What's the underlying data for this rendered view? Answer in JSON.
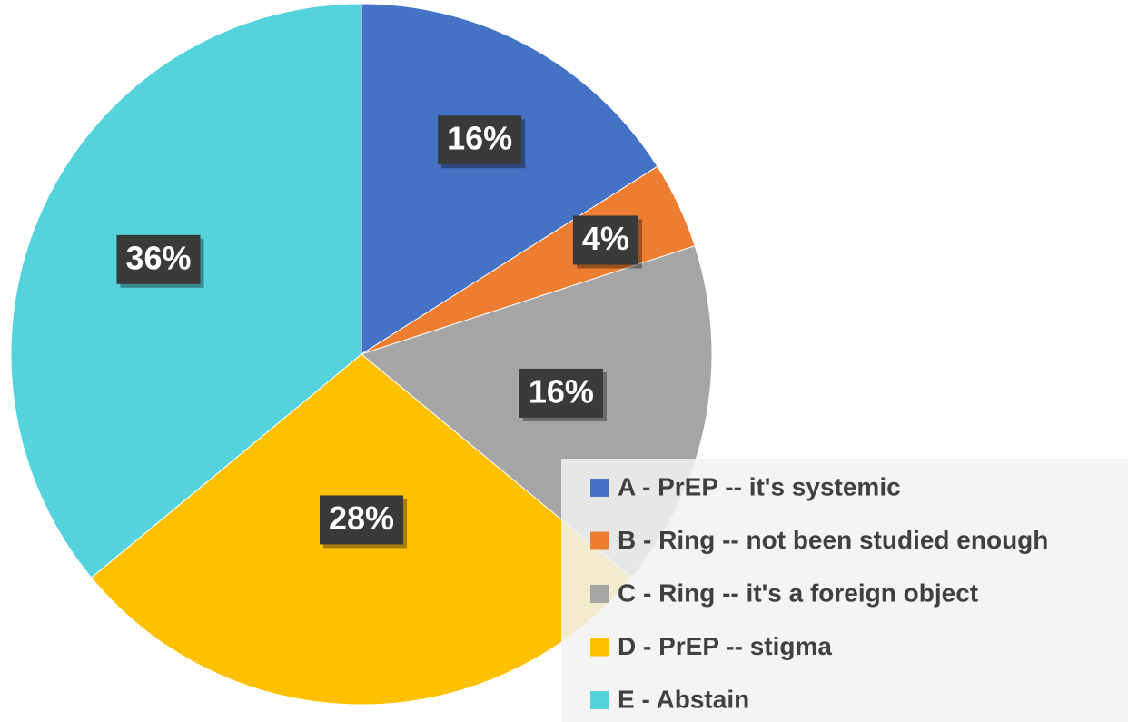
{
  "chart_data": {
    "type": "pie",
    "categories": [
      "A - PrEP -- it's systemic",
      "B - Ring -- not been studied enough",
      "C - Ring -- it's a foreign object",
      "D - PrEP -- stigma",
      "E - Abstain"
    ],
    "values": [
      16,
      4,
      16,
      28,
      36
    ],
    "value_labels": [
      "16%",
      "4%",
      "16%",
      "28%",
      "36%"
    ],
    "colors": [
      "#4472c4",
      "#ed7d31",
      "#a5a5a5",
      "#ffc000",
      "#55d3dc"
    ]
  }
}
